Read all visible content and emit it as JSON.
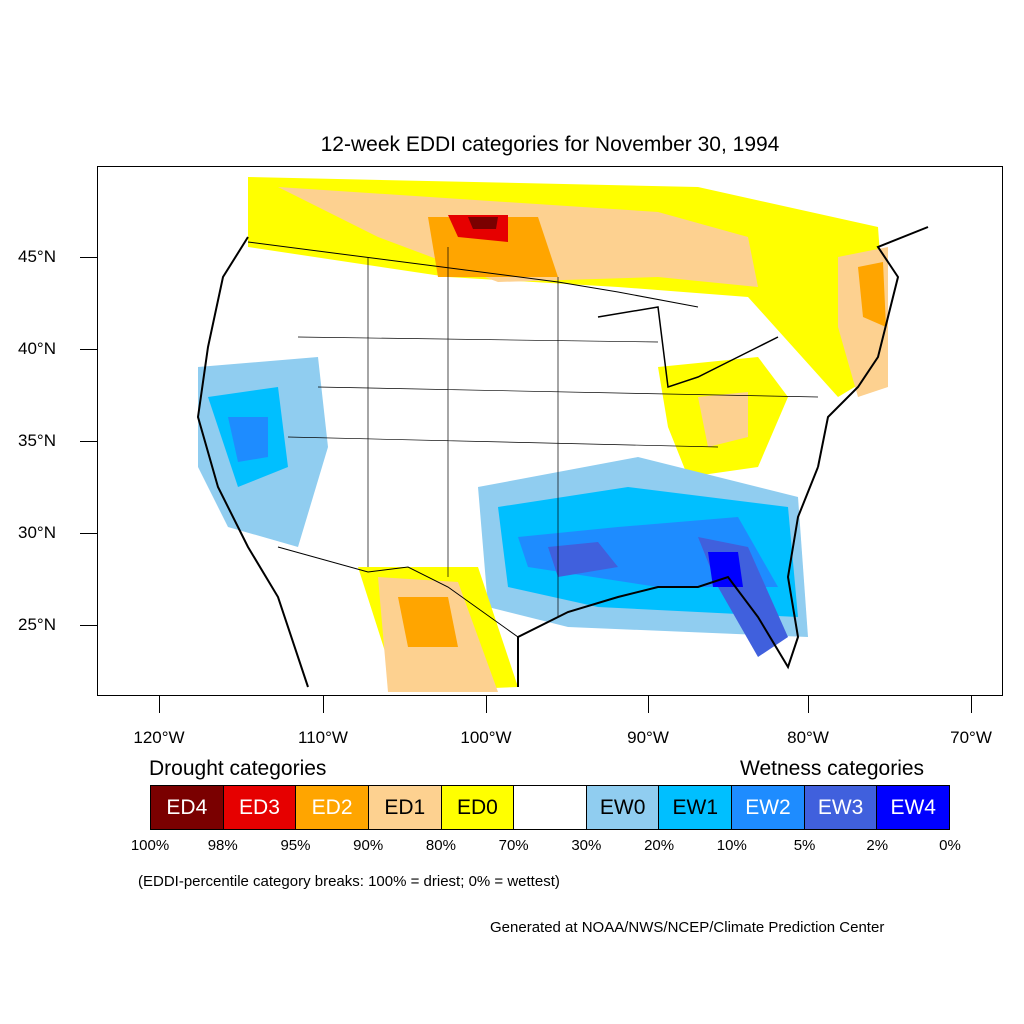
{
  "title": "12-week EDDI categories for November 30, 1994",
  "lat_labels": [
    "45°N",
    "40°N",
    "35°N",
    "30°N",
    "25°N"
  ],
  "lon_labels": [
    "120°W",
    "110°W",
    "100°W",
    "90°W",
    "80°W",
    "70°W"
  ],
  "legend": {
    "drought_heading": "Drought categories",
    "wetness_heading": "Wetness categories",
    "categories": [
      {
        "label": "ED4",
        "color": "#7a0000",
        "text_color": "#ffffff"
      },
      {
        "label": "ED3",
        "color": "#e60000",
        "text_color": "#ffffff"
      },
      {
        "label": "ED2",
        "color": "#ffa500",
        "text_color": "#ffffff"
      },
      {
        "label": "ED1",
        "color": "#fdd190",
        "text_color": "#000000"
      },
      {
        "label": "ED0",
        "color": "#ffff00",
        "text_color": "#000000"
      },
      {
        "label": "",
        "color": "#ffffff",
        "text_color": "#000000"
      },
      {
        "label": "EW0",
        "color": "#90cdf0",
        "text_color": "#000000"
      },
      {
        "label": "EW1",
        "color": "#00bfff",
        "text_color": "#000000"
      },
      {
        "label": "EW2",
        "color": "#1e8cff",
        "text_color": "#ffffff"
      },
      {
        "label": "EW3",
        "color": "#4060dd",
        "text_color": "#ffffff"
      },
      {
        "label": "EW4",
        "color": "#0000ff",
        "text_color": "#ffffff"
      }
    ],
    "percent_breaks": [
      "100%",
      "98%",
      "95%",
      "90%",
      "80%",
      "70%",
      "30%",
      "20%",
      "10%",
      "5%",
      "2%",
      "0%"
    ]
  },
  "note": "(EDDI-percentile category breaks: 100% = driest; 0% = wettest)",
  "credit": "Generated at NOAA/NWS/NCEP/Climate Prediction Center"
}
